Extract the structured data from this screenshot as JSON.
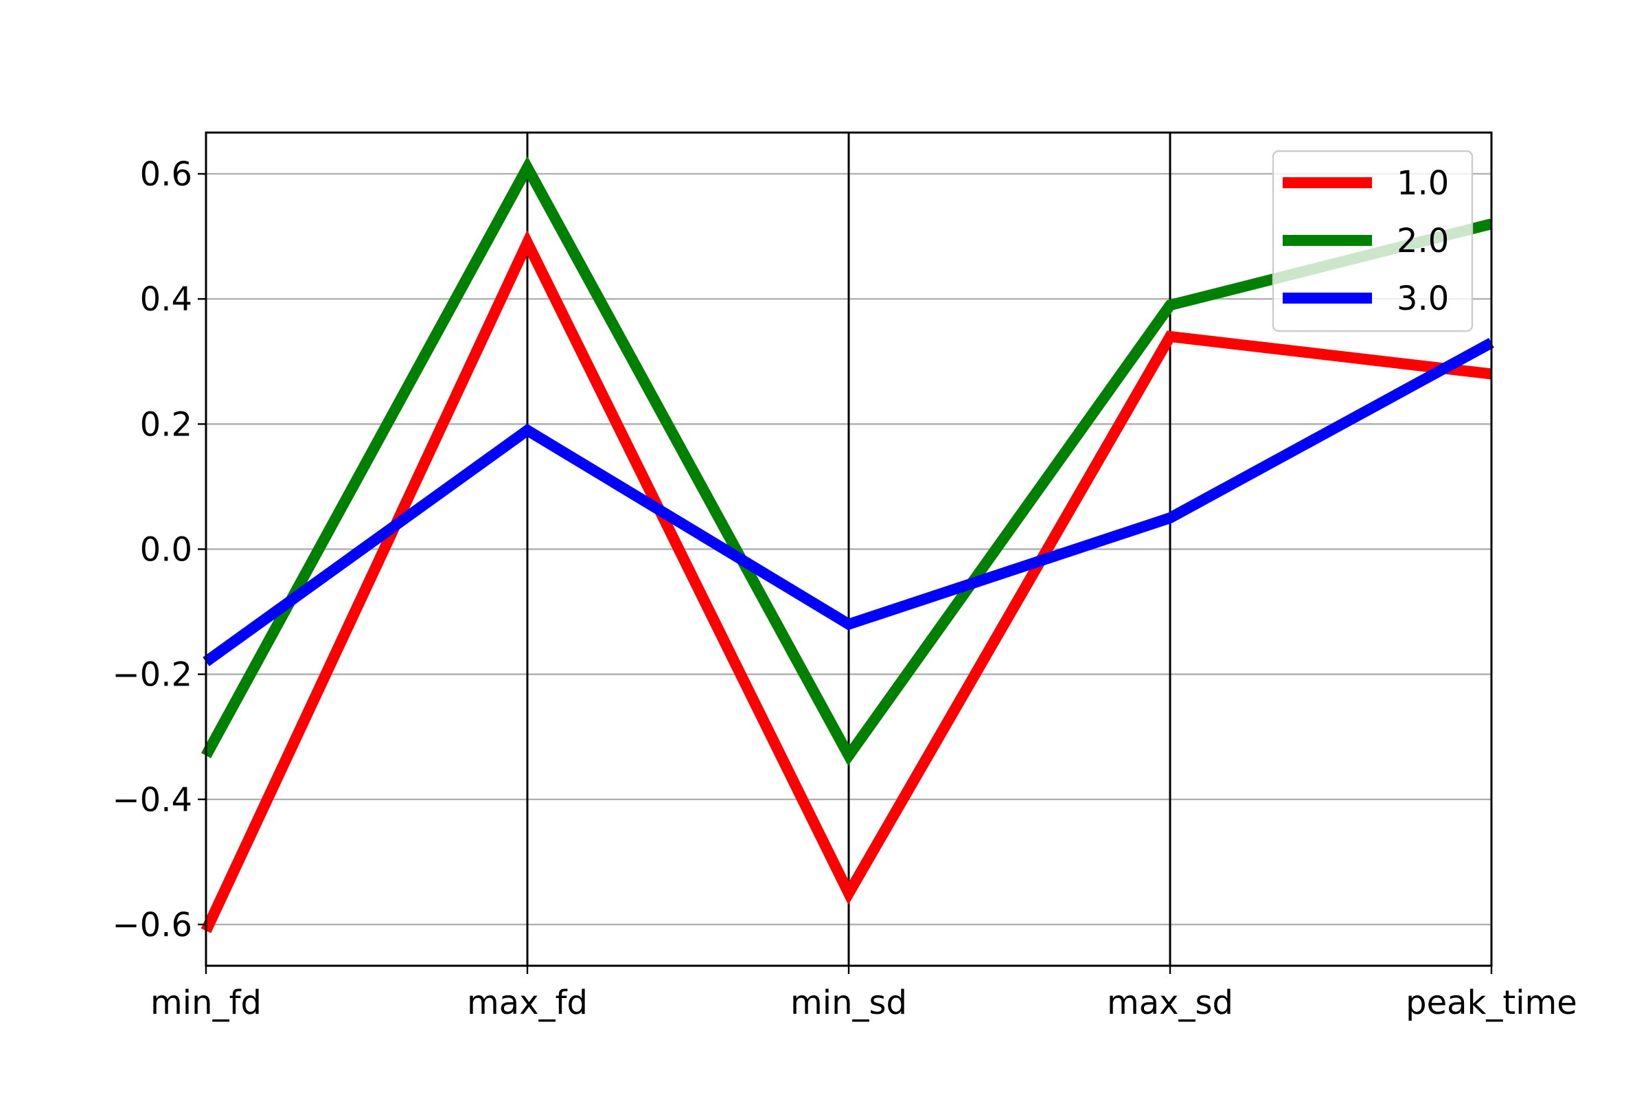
{
  "chart_data": {
    "type": "line",
    "title": "",
    "xlabel": "",
    "ylabel": "",
    "ylim": [
      -0.666,
      0.666
    ],
    "categories": [
      "min_fd",
      "max_fd",
      "min_sd",
      "max_sd",
      "peak_time"
    ],
    "y_ticks": [
      {
        "value": -0.6,
        "label": "−0.6"
      },
      {
        "value": -0.4,
        "label": "−0.4"
      },
      {
        "value": -0.2,
        "label": "−0.2"
      },
      {
        "value": 0.0,
        "label": "0.0"
      },
      {
        "value": 0.2,
        "label": "0.2"
      },
      {
        "value": 0.4,
        "label": "0.4"
      },
      {
        "value": 0.6,
        "label": "0.6"
      }
    ],
    "grid": "horizontal",
    "legend_position": "top-right",
    "series": [
      {
        "name": "1.0",
        "color": "#ff0000",
        "values": [
          -0.61,
          0.49,
          -0.55,
          0.34,
          0.28
        ]
      },
      {
        "name": "2.0",
        "color": "#008000",
        "values": [
          -0.33,
          0.61,
          -0.33,
          0.39,
          0.52
        ]
      },
      {
        "name": "3.0",
        "color": "#0000ff",
        "values": [
          -0.18,
          0.19,
          -0.12,
          0.05,
          0.33
        ]
      }
    ]
  }
}
